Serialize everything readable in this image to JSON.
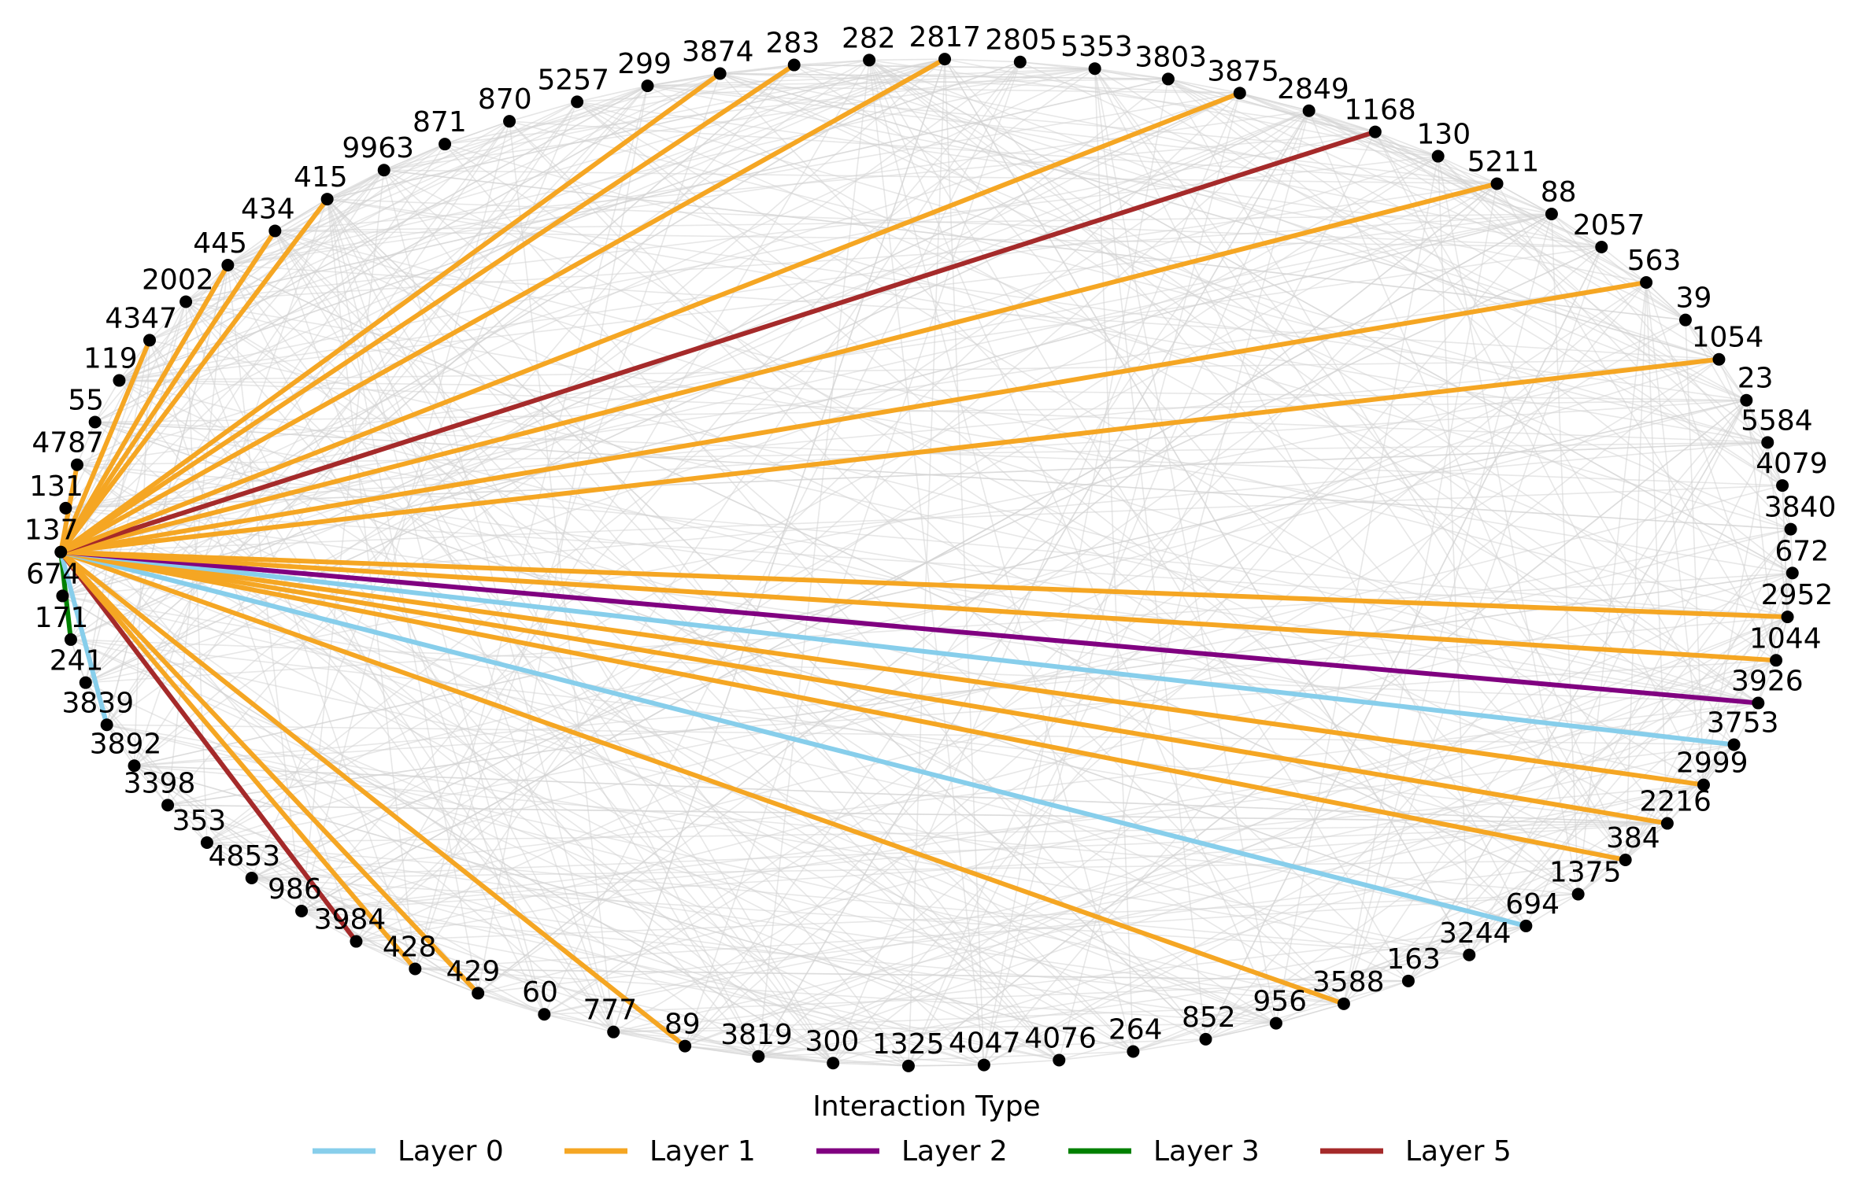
{
  "chart_data": {
    "type": "network",
    "layout": "circular",
    "focus_node": "137",
    "nodes": [
      "137",
      "674",
      "171",
      "241",
      "3839",
      "3892",
      "3398",
      "353",
      "4853",
      "986",
      "3984",
      "428",
      "429",
      "60",
      "777",
      "89",
      "3819",
      "300",
      "1325",
      "4047",
      "4076",
      "264",
      "852",
      "956",
      "3588",
      "163",
      "3244",
      "694",
      "1375",
      "384",
      "2216",
      "2999",
      "3753",
      "3926",
      "1044",
      "2952",
      "672",
      "3840",
      "4079",
      "5584",
      "23",
      "1054",
      "39",
      "563",
      "2057",
      "88",
      "5211",
      "130",
      "1168",
      "2849",
      "3875",
      "3803",
      "5353",
      "2805",
      "2817",
      "282",
      "283",
      "3874",
      "299",
      "5257",
      "870",
      "871",
      "9963",
      "415",
      "434",
      "445",
      "2002",
      "4347",
      "119",
      "55",
      "4787",
      "131"
    ],
    "highlighted_edges": [
      {
        "source": "137",
        "target": "171",
        "layer": "Layer 3"
      },
      {
        "source": "137",
        "target": "3839",
        "layer": "Layer 0"
      },
      {
        "source": "137",
        "target": "3984",
        "layer": "Layer 5"
      },
      {
        "source": "137",
        "target": "428",
        "layer": "Layer 1"
      },
      {
        "source": "137",
        "target": "429",
        "layer": "Layer 1"
      },
      {
        "source": "137",
        "target": "89",
        "layer": "Layer 1"
      },
      {
        "source": "137",
        "target": "3588",
        "layer": "Layer 1"
      },
      {
        "source": "137",
        "target": "694",
        "layer": "Layer 0"
      },
      {
        "source": "137",
        "target": "384",
        "layer": "Layer 1"
      },
      {
        "source": "137",
        "target": "2216",
        "layer": "Layer 1"
      },
      {
        "source": "137",
        "target": "2999",
        "layer": "Layer 1"
      },
      {
        "source": "137",
        "target": "3753",
        "layer": "Layer 0"
      },
      {
        "source": "137",
        "target": "3926",
        "layer": "Layer 2"
      },
      {
        "source": "137",
        "target": "1044",
        "layer": "Layer 1"
      },
      {
        "source": "137",
        "target": "2952",
        "layer": "Layer 1"
      },
      {
        "source": "137",
        "target": "1054",
        "layer": "Layer 1"
      },
      {
        "source": "137",
        "target": "563",
        "layer": "Layer 1"
      },
      {
        "source": "137",
        "target": "5211",
        "layer": "Layer 1"
      },
      {
        "source": "137",
        "target": "1168",
        "layer": "Layer 5"
      },
      {
        "source": "137",
        "target": "3875",
        "layer": "Layer 1"
      },
      {
        "source": "137",
        "target": "2817",
        "layer": "Layer 1"
      },
      {
        "source": "137",
        "target": "283",
        "layer": "Layer 1"
      },
      {
        "source": "137",
        "target": "3874",
        "layer": "Layer 1"
      },
      {
        "source": "137",
        "target": "415",
        "layer": "Layer 1"
      },
      {
        "source": "137",
        "target": "434",
        "layer": "Layer 1"
      },
      {
        "source": "137",
        "target": "445",
        "layer": "Layer 1"
      },
      {
        "source": "137",
        "target": "4347",
        "layer": "Layer 1"
      },
      {
        "source": "137",
        "target": "4787",
        "layer": "Layer 1"
      }
    ],
    "background_edges": "dense light-gray edges among all nodes",
    "legend": {
      "title": "Interaction Type",
      "position": "bottom-center",
      "entries": [
        {
          "label": "Layer 0",
          "color": "#87ceeb"
        },
        {
          "label": "Layer 1",
          "color": "#f5a623"
        },
        {
          "label": "Layer 2",
          "color": "#800080"
        },
        {
          "label": "Layer 3",
          "color": "#008000"
        },
        {
          "label": "Layer 5",
          "color": "#a52a2a"
        }
      ]
    },
    "colors": {
      "node": "#000000",
      "focus_label": "#ff0000",
      "background_edge": "#d3d3d3"
    }
  }
}
